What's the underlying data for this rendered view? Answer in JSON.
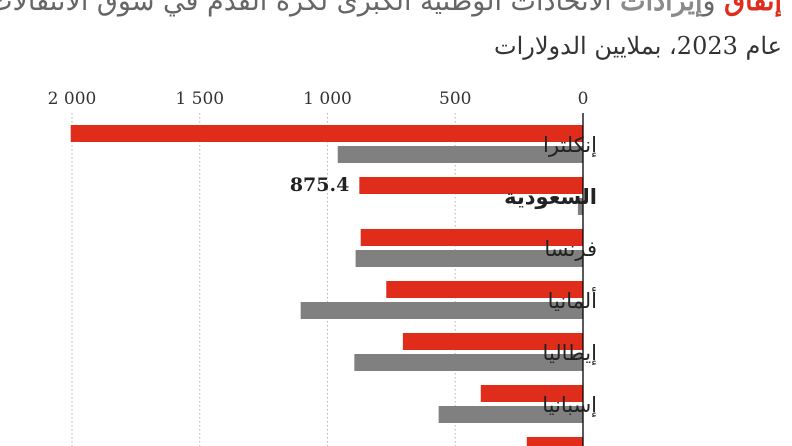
{
  "title": {
    "spend_word": "إنفاق",
    "connector": " و",
    "income_word": "إيرادات",
    "rest": " الاتحادات الوطنية الكبرى لكرة القدم في سوق الانتقالات"
  },
  "subtitle": "عام 2023، بملايين الدولارات",
  "colors": {
    "spending": "#e02d1b",
    "income": "#808080",
    "grid": "#b5b5b5",
    "axis": "#000000"
  },
  "chart_data": {
    "type": "bar",
    "orientation": "horizontal",
    "x_direction": "right-to-left",
    "xlim": [
      0,
      2050
    ],
    "xticks": [
      0,
      500,
      1000,
      1500,
      2000
    ],
    "xtick_labels": [
      "0",
      "500",
      "1 000",
      "1 500",
      "2 000"
    ],
    "categories": [
      "إنكلترا",
      "السعودية",
      "فرنسا",
      "ألمانيا",
      "إيطاليا",
      "إسبانيا",
      ""
    ],
    "highlight_category": "السعودية",
    "series": [
      {
        "key": "spending",
        "values": [
          2005,
          875.4,
          870,
          770,
          705,
          400,
          220
        ]
      },
      {
        "key": "income",
        "values": [
          960,
          20,
          890,
          1105,
          895,
          565,
          null
        ]
      }
    ],
    "data_labels": [
      {
        "category": "السعودية",
        "series": "spending",
        "text": "875.4"
      }
    ],
    "grid": true
  }
}
